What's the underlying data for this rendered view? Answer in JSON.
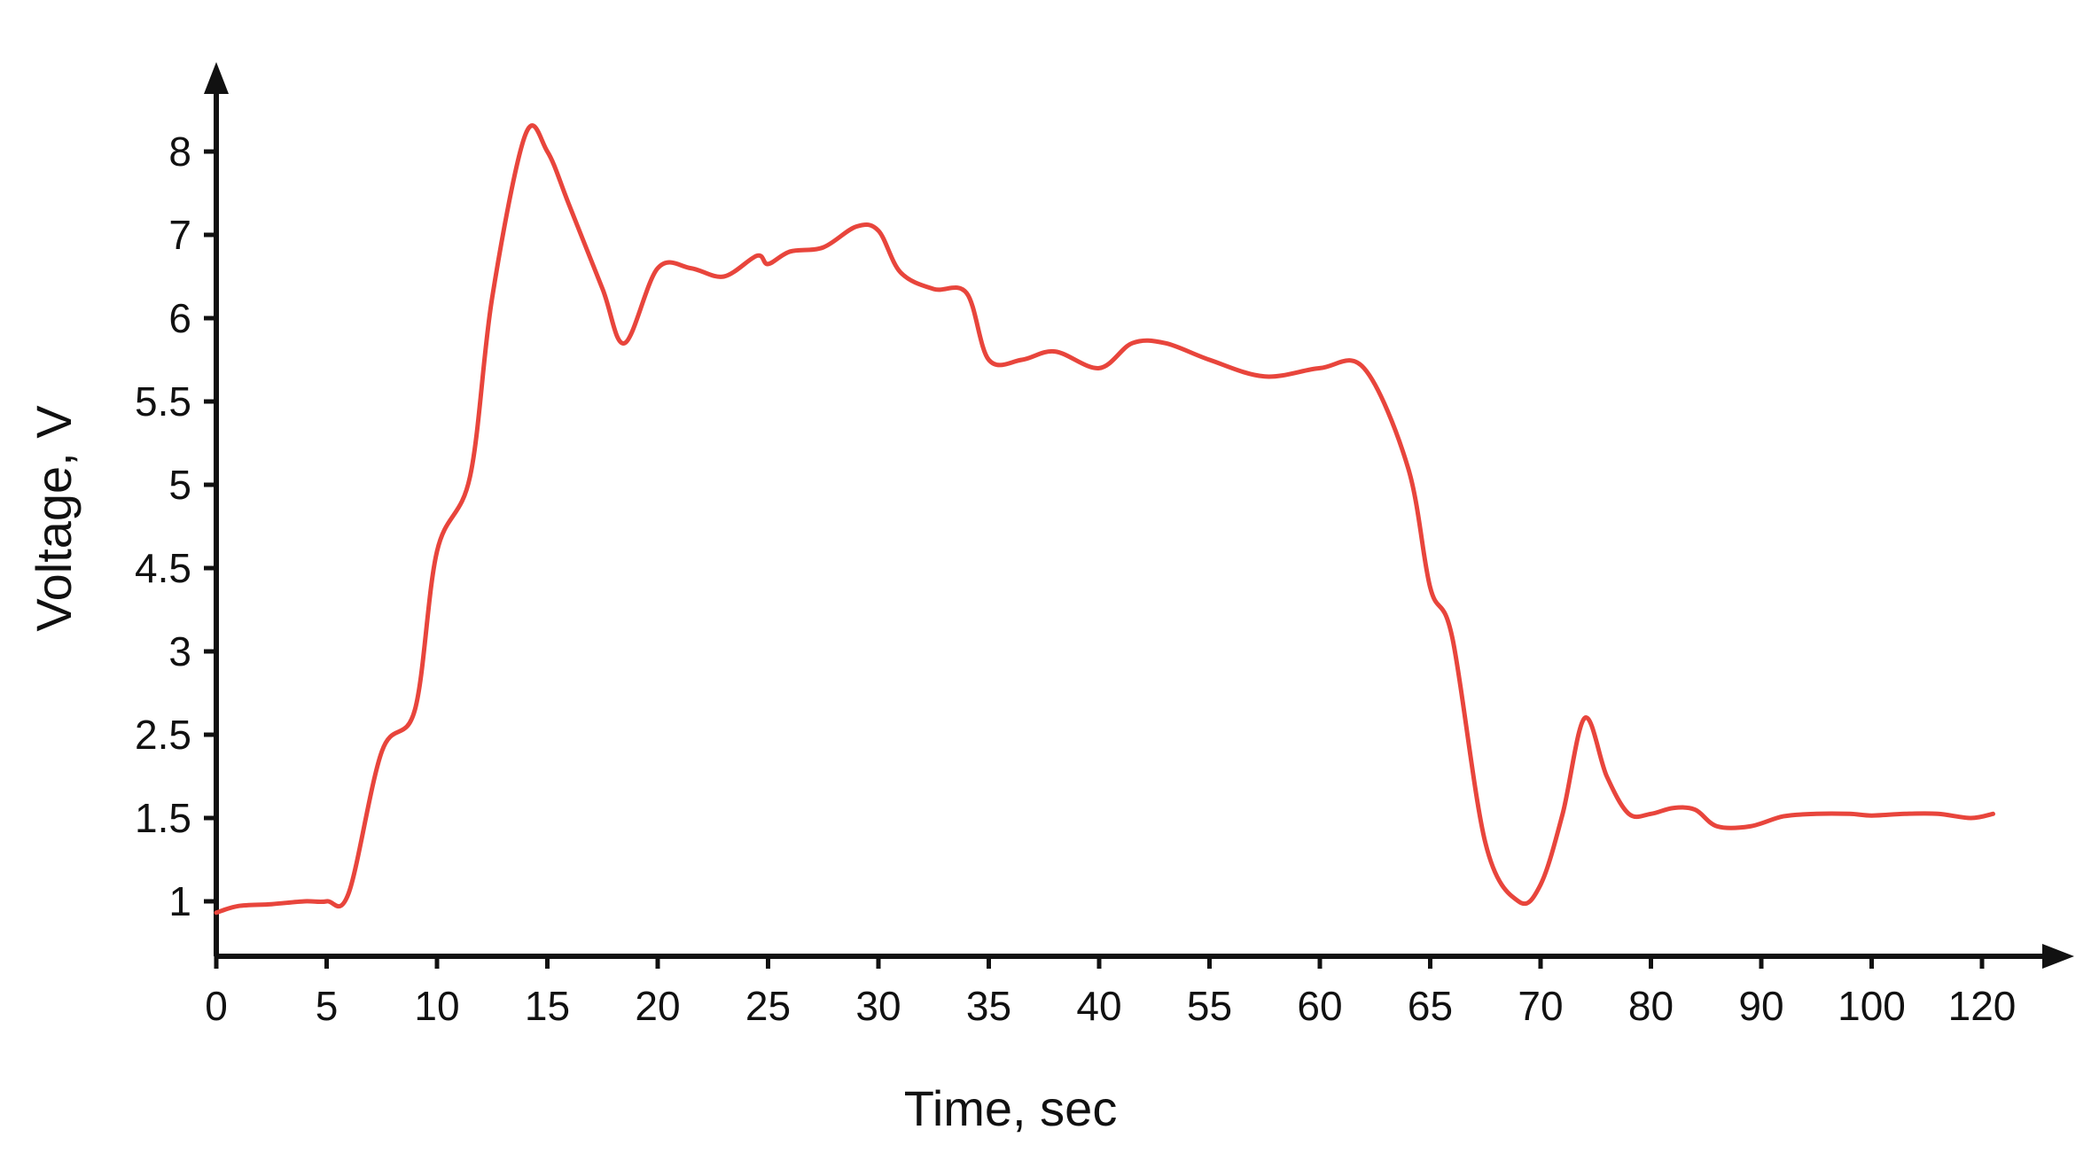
{
  "colors": {
    "series": "#e8453c",
    "axis": "#111111",
    "background": "#ffffff"
  },
  "chart_data": {
    "type": "line",
    "title": "",
    "xlabel": "Time, sec",
    "ylabel": "Voltage, V",
    "grid": false,
    "legend": "none",
    "scale_note": "Both axes use uneven (categorical) tick spacing; labels are placed at equal intervals.",
    "x_ticks": [
      "0",
      "5",
      "10",
      "15",
      "20",
      "25",
      "30",
      "35",
      "40",
      "55",
      "60",
      "65",
      "70",
      "80",
      "90",
      "100",
      "120"
    ],
    "y_ticks": [
      "1",
      "1.5",
      "2.5",
      "3",
      "4.5",
      "5",
      "5.5",
      "6",
      "7",
      "8"
    ],
    "series": [
      {
        "x_tick_index": [
          0,
          0.2,
          0.5,
          0.8,
          1.0,
          1.2,
          1.5,
          1.8,
          2.0,
          2.3,
          2.5,
          2.8,
          3.0,
          3.2,
          3.5,
          3.7,
          4.0,
          4.3,
          4.6,
          4.9,
          5.0,
          5.2,
          5.5,
          5.8,
          6.0,
          6.2,
          6.5,
          6.8,
          7.0,
          7.3,
          7.6,
          8.0,
          8.3,
          8.6,
          9.0,
          9.5,
          10.0,
          10.4,
          10.8,
          11.0,
          11.2,
          11.5,
          11.8,
          12.0,
          12.2,
          12.4,
          12.6,
          12.8,
          13.0,
          13.2,
          13.4,
          13.6,
          13.9,
          14.2,
          14.5,
          14.8,
          15.0,
          15.3,
          15.6,
          15.9,
          16.1
        ],
        "values": [
          0.88,
          0.95,
          0.97,
          1.0,
          1.0,
          1.05,
          2.3,
          2.65,
          4.6,
          5.05,
          6.25,
          8.2,
          8.0,
          7.35,
          6.35,
          5.85,
          6.6,
          6.6,
          6.5,
          6.75,
          6.65,
          6.8,
          6.85,
          7.1,
          7.05,
          6.55,
          6.35,
          6.3,
          5.75,
          5.75,
          5.8,
          5.7,
          5.85,
          5.85,
          5.75,
          5.65,
          5.7,
          5.7,
          5.1,
          4.15,
          3.25,
          1.35,
          1.0,
          1.1,
          1.55,
          2.6,
          2.0,
          1.55,
          1.55,
          1.62,
          1.6,
          1.45,
          1.45,
          1.52,
          1.55,
          1.55,
          1.53,
          1.55,
          1.55,
          1.5,
          1.55
        ]
      }
    ]
  }
}
